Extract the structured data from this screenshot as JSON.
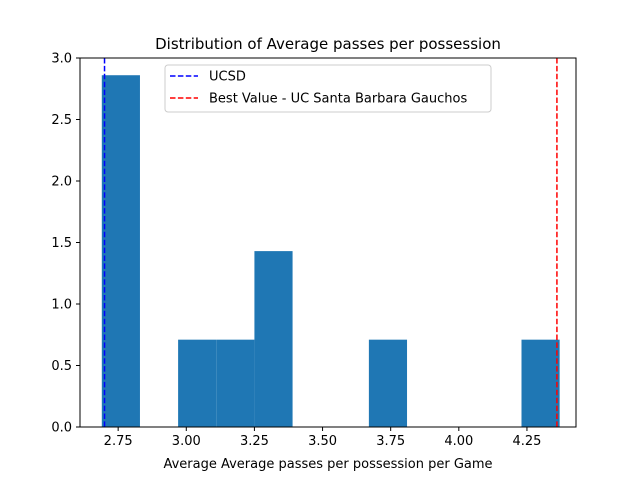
{
  "chart_data": {
    "type": "bar",
    "title": "Distribution of Average passes per possession",
    "xlabel": "Average Average passes per possession per Game",
    "ylabel": "",
    "xlim": [
      2.61,
      4.43
    ],
    "ylim": [
      0.0,
      3.0
    ],
    "xticks": [
      2.75,
      3.0,
      3.25,
      3.5,
      3.75,
      4.0,
      4.25
    ],
    "xtick_labels": [
      "2.75",
      "3.00",
      "3.25",
      "3.50",
      "3.75",
      "4.00",
      "4.25"
    ],
    "yticks": [
      0.0,
      0.5,
      1.0,
      1.5,
      2.0,
      2.5,
      3.0
    ],
    "ytick_labels": [
      "0.0",
      "0.5",
      "1.0",
      "1.5",
      "2.0",
      "2.5",
      "3.0"
    ],
    "bin_edges": [
      2.69,
      2.83,
      2.97,
      3.11,
      3.25,
      3.39,
      3.53,
      3.67,
      3.81,
      3.95,
      4.09,
      4.23,
      4.37
    ],
    "values": [
      2.86,
      0.0,
      0.71,
      0.71,
      1.43,
      0.0,
      0.0,
      0.71,
      0.0,
      0.0,
      0.0,
      0.71
    ],
    "bar_color": "#1f77b4",
    "grid": false,
    "legend_position": "top-center",
    "reference_lines": [
      {
        "name": "UCSD",
        "x": 2.7,
        "color": "#0000ff",
        "style": "dashed"
      },
      {
        "name": "Best Value - UC Santa Barbara Gauchos",
        "x": 4.36,
        "color": "#ff0000",
        "style": "dashed"
      }
    ]
  }
}
